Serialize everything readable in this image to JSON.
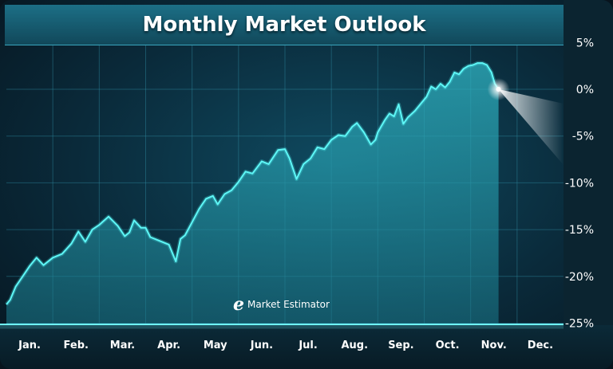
{
  "title": "Monthly Market Outlook",
  "logo": {
    "mark": "e",
    "text": "Market Estimator"
  },
  "colors": {
    "line": "#4ff4f4",
    "area": "#2aa4b4",
    "background": "#0a2a3a",
    "title_bar": "#1a6a80"
  },
  "chart_data": {
    "type": "area",
    "title": "Monthly Market Outlook",
    "xlabel": "",
    "ylabel": "",
    "categories": [
      "Jan.",
      "Feb.",
      "Mar.",
      "Apr.",
      "May",
      "Jun.",
      "Jul.",
      "Aug.",
      "Sep.",
      "Oct.",
      "Nov.",
      "Dec."
    ],
    "ylim": [
      -25,
      5
    ],
    "yticks": [
      5,
      0,
      -5,
      -10,
      -15,
      -20,
      -25
    ],
    "ytick_labels": [
      "5%",
      "0%",
      "-5%",
      "-10%",
      "-15%",
      "-20%",
      "-25%"
    ],
    "grid": true,
    "x_unit": "month index (0 = start of Jan., 12 = end of Dec.)",
    "series": [
      {
        "values": [
          [
            0.0,
            -23.0
          ],
          [
            0.08,
            -22.5
          ],
          [
            0.2,
            -21.1
          ],
          [
            0.35,
            -20.0
          ],
          [
            0.5,
            -18.9
          ],
          [
            0.65,
            -18.0
          ],
          [
            0.8,
            -18.8
          ],
          [
            1.0,
            -18.0
          ],
          [
            1.2,
            -17.6
          ],
          [
            1.4,
            -16.5
          ],
          [
            1.55,
            -15.2
          ],
          [
            1.7,
            -16.3
          ],
          [
            1.85,
            -15.0
          ],
          [
            2.0,
            -14.5
          ],
          [
            2.2,
            -13.6
          ],
          [
            2.4,
            -14.6
          ],
          [
            2.55,
            -15.7
          ],
          [
            2.65,
            -15.3
          ],
          [
            2.75,
            -14.0
          ],
          [
            2.9,
            -14.8
          ],
          [
            3.0,
            -14.8
          ],
          [
            3.1,
            -15.8
          ],
          [
            3.3,
            -16.2
          ],
          [
            3.5,
            -16.6
          ],
          [
            3.65,
            -18.4
          ],
          [
            3.75,
            -16.0
          ],
          [
            3.85,
            -15.6
          ],
          [
            4.0,
            -14.2
          ],
          [
            4.15,
            -12.8
          ],
          [
            4.3,
            -11.7
          ],
          [
            4.45,
            -11.4
          ],
          [
            4.55,
            -12.3
          ],
          [
            4.7,
            -11.2
          ],
          [
            4.85,
            -10.8
          ],
          [
            5.0,
            -9.9
          ],
          [
            5.15,
            -8.8
          ],
          [
            5.3,
            -9.0
          ],
          [
            5.5,
            -7.7
          ],
          [
            5.65,
            -8.0
          ],
          [
            5.85,
            -6.5
          ],
          [
            6.0,
            -6.4
          ],
          [
            6.1,
            -7.4
          ],
          [
            6.25,
            -9.6
          ],
          [
            6.4,
            -8.0
          ],
          [
            6.55,
            -7.4
          ],
          [
            6.7,
            -6.2
          ],
          [
            6.85,
            -6.4
          ],
          [
            7.0,
            -5.4
          ],
          [
            7.15,
            -4.9
          ],
          [
            7.3,
            -5.0
          ],
          [
            7.45,
            -4.0
          ],
          [
            7.55,
            -3.6
          ],
          [
            7.7,
            -4.6
          ],
          [
            7.85,
            -5.9
          ],
          [
            7.95,
            -5.4
          ],
          [
            8.0,
            -4.6
          ],
          [
            8.15,
            -3.3
          ],
          [
            8.25,
            -2.6
          ],
          [
            8.35,
            -2.9
          ],
          [
            8.45,
            -1.6
          ],
          [
            8.55,
            -3.7
          ],
          [
            8.65,
            -3.0
          ],
          [
            8.8,
            -2.3
          ],
          [
            8.95,
            -1.4
          ],
          [
            9.05,
            -0.8
          ],
          [
            9.15,
            0.3
          ],
          [
            9.25,
            0.0
          ],
          [
            9.35,
            0.6
          ],
          [
            9.45,
            0.2
          ],
          [
            9.55,
            0.8
          ],
          [
            9.65,
            1.8
          ],
          [
            9.75,
            1.6
          ],
          [
            9.85,
            2.2
          ],
          [
            9.95,
            2.5
          ],
          [
            10.05,
            2.6
          ],
          [
            10.15,
            2.8
          ],
          [
            10.25,
            2.8
          ],
          [
            10.35,
            2.6
          ],
          [
            10.45,
            1.8
          ],
          [
            10.52,
            0.6
          ],
          [
            10.6,
            0.0
          ]
        ]
      }
    ],
    "forecast_point": [
      10.6,
      0.0
    ]
  }
}
